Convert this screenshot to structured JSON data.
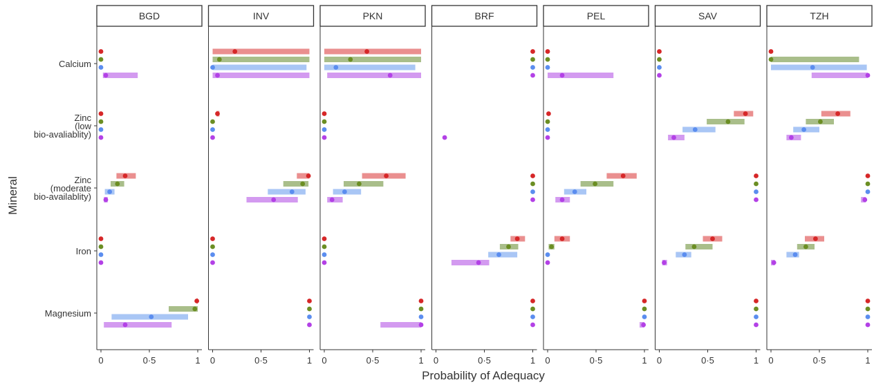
{
  "chart_data": {
    "type": "dot-range",
    "xlabel": "Probability of Adequacy",
    "ylabel": "Mineral",
    "xlim": [
      0,
      1
    ],
    "x_ticks": [
      {
        "value": 0,
        "label": "0"
      },
      {
        "value": 0.5,
        "label": "0·5"
      },
      {
        "value": 1,
        "label": "1"
      }
    ],
    "facets": [
      "BGD",
      "INV",
      "PKN",
      "BRF",
      "PEL",
      "SAV",
      "TZH"
    ],
    "minerals": [
      {
        "key": "calcium",
        "lines": [
          "Calcium"
        ]
      },
      {
        "key": "zinc_low",
        "lines": [
          "Zinc",
          "(low",
          "bio-avaliablity)"
        ]
      },
      {
        "key": "zinc_mod",
        "lines": [
          "Zinc",
          "(moderate",
          "bio-availablity)"
        ]
      },
      {
        "key": "iron",
        "lines": [
          "Iron"
        ]
      },
      {
        "key": "magnesium",
        "lines": [
          "Magnesium"
        ]
      }
    ],
    "series_colors": [
      "#d62728",
      "#6b8e23",
      "#5b8def",
      "#b341e6"
    ],
    "series_range_colors": [
      "#ea8f8f",
      "#a9be8a",
      "#a9c6f5",
      "#d39af0"
    ],
    "data": {
      "BGD": {
        "calcium": [
          [
            0.0,
            0.0,
            0.0
          ],
          [
            0.0,
            0.0,
            0.0
          ],
          [
            0.0,
            0.0,
            0.0
          ],
          [
            0.05,
            0.02,
            0.38
          ]
        ],
        "zinc_low": [
          [
            0.0,
            0.0,
            0.0
          ],
          [
            0.0,
            0.0,
            0.0
          ],
          [
            0.0,
            0.0,
            0.0
          ],
          [
            0.0,
            0.0,
            0.0
          ]
        ],
        "zinc_mod": [
          [
            0.25,
            0.16,
            0.36
          ],
          [
            0.17,
            0.1,
            0.24
          ],
          [
            0.09,
            0.04,
            0.14
          ],
          [
            0.05,
            0.03,
            0.07
          ]
        ],
        "iron": [
          [
            0.0,
            0.0,
            0.0
          ],
          [
            0.0,
            0.0,
            0.0
          ],
          [
            0.0,
            0.0,
            0.0
          ],
          [
            0.0,
            0.0,
            0.0
          ]
        ],
        "magnesium": [
          [
            0.99,
            0.99,
            1.0
          ],
          [
            0.97,
            0.7,
            1.0
          ],
          [
            0.52,
            0.11,
            0.9
          ],
          [
            0.25,
            0.03,
            0.73
          ]
        ]
      },
      "INV": {
        "calcium": [
          [
            0.23,
            0.0,
            1.0
          ],
          [
            0.07,
            0.0,
            1.0
          ],
          [
            0.0,
            0.0,
            0.97
          ],
          [
            0.05,
            0.0,
            1.0
          ]
        ],
        "zinc_low": [
          [
            0.05,
            0.04,
            0.07
          ],
          [
            0.0,
            0.0,
            0.0
          ],
          [
            0.0,
            0.0,
            0.0
          ],
          [
            0.0,
            0.0,
            0.0
          ]
        ],
        "zinc_mod": [
          [
            0.99,
            0.87,
            1.0
          ],
          [
            0.93,
            0.73,
            0.99
          ],
          [
            0.82,
            0.57,
            0.96
          ],
          [
            0.63,
            0.35,
            0.88
          ]
        ],
        "iron": [
          [
            0.0,
            0.0,
            0.0
          ],
          [
            0.0,
            0.0,
            0.0
          ],
          [
            0.0,
            0.0,
            0.0
          ],
          [
            0.0,
            0.0,
            0.0
          ]
        ],
        "magnesium": [
          [
            1.0,
            1.0,
            1.0
          ],
          [
            1.0,
            1.0,
            1.0
          ],
          [
            1.0,
            1.0,
            1.0
          ],
          [
            1.0,
            1.0,
            1.0
          ]
        ]
      },
      "PKN": {
        "calcium": [
          [
            0.44,
            0.0,
            1.0
          ],
          [
            0.27,
            0.0,
            1.0
          ],
          [
            0.12,
            0.0,
            0.94
          ],
          [
            0.68,
            0.03,
            1.0
          ]
        ],
        "zinc_low": [
          [
            0.0,
            0.0,
            0.0
          ],
          [
            0.0,
            0.0,
            0.0
          ],
          [
            0.0,
            0.0,
            0.0
          ],
          [
            0.0,
            0.0,
            0.0
          ]
        ],
        "zinc_mod": [
          [
            0.64,
            0.39,
            0.84
          ],
          [
            0.36,
            0.2,
            0.61
          ],
          [
            0.21,
            0.09,
            0.38
          ],
          [
            0.08,
            0.03,
            0.19
          ]
        ],
        "iron": [
          [
            0.0,
            0.0,
            0.0
          ],
          [
            0.0,
            0.0,
            0.0
          ],
          [
            0.0,
            0.0,
            0.0
          ],
          [
            0.0,
            0.0,
            0.0
          ]
        ],
        "magnesium": [
          [
            1.0,
            1.0,
            1.0
          ],
          [
            1.0,
            1.0,
            1.0
          ],
          [
            1.0,
            1.0,
            1.0
          ],
          [
            1.0,
            0.58,
            1.0
          ]
        ]
      },
      "BRF": {
        "calcium": [
          [
            1.0,
            1.0,
            1.0
          ],
          [
            1.0,
            1.0,
            1.0
          ],
          [
            1.0,
            1.0,
            1.0
          ],
          [
            1.0,
            1.0,
            1.0
          ]
        ],
        "zinc_low": [
          null,
          null,
          null,
          [
            0.09,
            0.09,
            0.09
          ]
        ],
        "zinc_mod": [
          [
            1.0,
            1.0,
            1.0
          ],
          [
            1.0,
            1.0,
            1.0
          ],
          [
            1.0,
            1.0,
            1.0
          ],
          [
            1.0,
            1.0,
            1.0
          ]
        ],
        "iron": [
          [
            0.84,
            0.77,
            0.92
          ],
          [
            0.75,
            0.66,
            0.85
          ],
          [
            0.65,
            0.54,
            0.84
          ],
          [
            0.44,
            0.16,
            0.55
          ]
        ],
        "magnesium": [
          [
            1.0,
            1.0,
            1.0
          ],
          [
            1.0,
            1.0,
            1.0
          ],
          [
            1.0,
            1.0,
            1.0
          ],
          [
            1.0,
            1.0,
            1.0
          ]
        ]
      },
      "PEL": {
        "calcium": [
          [
            0.0,
            0.0,
            0.0
          ],
          [
            0.0,
            0.0,
            0.0
          ],
          [
            0.0,
            0.0,
            0.0
          ],
          [
            0.15,
            0.0,
            0.68
          ]
        ],
        "zinc_low": [
          [
            0.01,
            0.01,
            0.01
          ],
          [
            0.0,
            0.0,
            0.0
          ],
          [
            0.0,
            0.0,
            0.0
          ],
          [
            0.0,
            0.0,
            0.0
          ]
        ],
        "zinc_mod": [
          [
            0.78,
            0.61,
            0.92
          ],
          [
            0.49,
            0.34,
            0.68
          ],
          [
            0.28,
            0.17,
            0.4
          ],
          [
            0.15,
            0.08,
            0.23
          ]
        ],
        "iron": [
          [
            0.15,
            0.07,
            0.23
          ],
          [
            0.04,
            0.01,
            0.07
          ],
          [
            0.0,
            0.0,
            0.0
          ],
          [
            0.0,
            0.0,
            0.0
          ]
        ],
        "magnesium": [
          [
            1.0,
            1.0,
            1.0
          ],
          [
            1.0,
            1.0,
            1.0
          ],
          [
            1.0,
            1.0,
            1.0
          ],
          [
            0.99,
            0.95,
            1.0
          ]
        ]
      },
      "SAV": {
        "calcium": [
          [
            0.0,
            0.0,
            0.0
          ],
          [
            0.0,
            0.0,
            0.0
          ],
          [
            0.0,
            0.0,
            0.0
          ],
          [
            0.0,
            0.0,
            0.0
          ]
        ],
        "zinc_low": [
          [
            0.89,
            0.77,
            0.97
          ],
          [
            0.71,
            0.49,
            0.88
          ],
          [
            0.37,
            0.24,
            0.58
          ],
          [
            0.15,
            0.09,
            0.26
          ]
        ],
        "zinc_mod": [
          [
            1.0,
            1.0,
            1.0
          ],
          [
            1.0,
            1.0,
            1.0
          ],
          [
            1.0,
            1.0,
            1.0
          ],
          [
            1.0,
            1.0,
            1.0
          ]
        ],
        "iron": [
          [
            0.55,
            0.45,
            0.65
          ],
          [
            0.36,
            0.27,
            0.55
          ],
          [
            0.26,
            0.17,
            0.33
          ],
          [
            0.05,
            0.03,
            0.08
          ]
        ],
        "magnesium": [
          [
            1.0,
            1.0,
            1.0
          ],
          [
            1.0,
            1.0,
            1.0
          ],
          [
            1.0,
            1.0,
            1.0
          ],
          [
            1.0,
            1.0,
            1.0
          ]
        ]
      },
      "TZH": {
        "calcium": [
          [
            0.0,
            0.0,
            0.0
          ],
          [
            0.0,
            0.0,
            0.91
          ],
          [
            0.43,
            0.0,
            0.99
          ],
          [
            1.0,
            0.42,
            1.0
          ]
        ],
        "zinc_low": [
          [
            0.69,
            0.52,
            0.82
          ],
          [
            0.51,
            0.36,
            0.65
          ],
          [
            0.34,
            0.23,
            0.5
          ],
          [
            0.21,
            0.16,
            0.31
          ]
        ],
        "zinc_mod": [
          [
            1.0,
            1.0,
            1.0
          ],
          [
            1.0,
            1.0,
            1.0
          ],
          [
            1.0,
            1.0,
            1.0
          ],
          [
            0.97,
            0.93,
            0.98
          ]
        ],
        "iron": [
          [
            0.46,
            0.35,
            0.55
          ],
          [
            0.36,
            0.27,
            0.45
          ],
          [
            0.25,
            0.16,
            0.29
          ],
          [
            0.03,
            0.0,
            0.04
          ]
        ],
        "magnesium": [
          [
            1.0,
            1.0,
            1.0
          ],
          [
            1.0,
            1.0,
            1.0
          ],
          [
            1.0,
            1.0,
            1.0
          ],
          [
            1.0,
            1.0,
            1.0
          ]
        ]
      }
    }
  }
}
